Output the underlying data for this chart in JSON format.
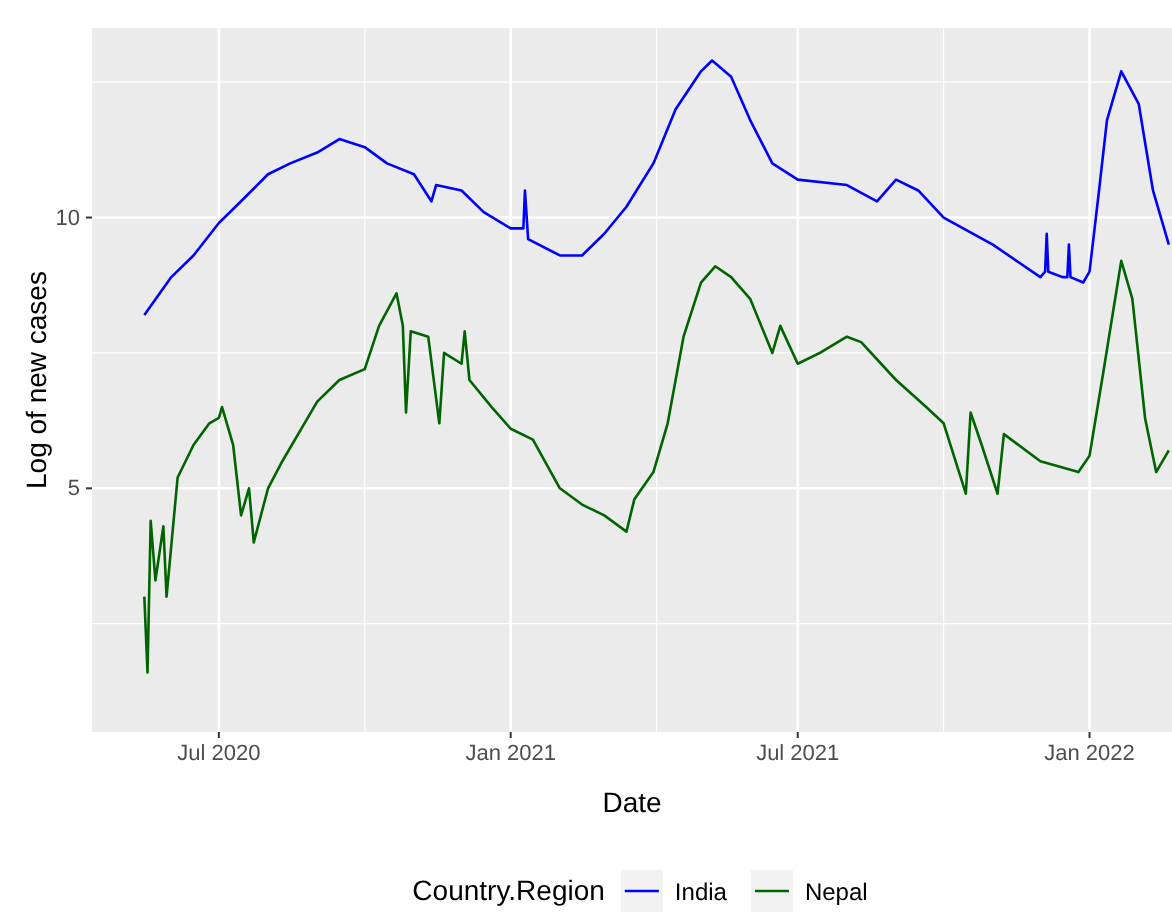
{
  "chart_data": {
    "type": "line",
    "xlabel": "Date",
    "ylabel": "Log of new cases",
    "legend_title": "Country.Region",
    "legend": "bottom",
    "grid": true,
    "xlim": [
      "2020-04-12",
      "2022-02-22"
    ],
    "ylim": [
      0.5,
      13.5
    ],
    "xticks": [
      {
        "value": "2020-07-01",
        "label": "Jul 2020"
      },
      {
        "value": "2021-01-01",
        "label": "Jan 2021"
      },
      {
        "value": "2021-07-01",
        "label": "Jul 2021"
      },
      {
        "value": "2022-01-01",
        "label": "Jan 2022"
      }
    ],
    "yticks": [
      5,
      10
    ],
    "series": [
      {
        "name": "India",
        "color": "#0000ff",
        "x": [
          "2020-05-15",
          "2020-06-01",
          "2020-06-15",
          "2020-07-01",
          "2020-07-15",
          "2020-08-01",
          "2020-08-15",
          "2020-09-01",
          "2020-09-15",
          "2020-10-01",
          "2020-10-15",
          "2020-11-01",
          "2020-11-12",
          "2020-11-15",
          "2020-12-01",
          "2020-12-15",
          "2021-01-01",
          "2021-01-09",
          "2021-01-10",
          "2021-01-12",
          "2021-02-01",
          "2021-02-15",
          "2021-03-01",
          "2021-03-15",
          "2021-04-01",
          "2021-04-15",
          "2021-05-01",
          "2021-05-08",
          "2021-05-20",
          "2021-06-01",
          "2021-06-15",
          "2021-07-01",
          "2021-08-01",
          "2021-08-20",
          "2021-09-01",
          "2021-09-15",
          "2021-10-01",
          "2021-11-01",
          "2021-12-01",
          "2021-12-04",
          "2021-12-05",
          "2021-12-06",
          "2021-12-15",
          "2021-12-18",
          "2021-12-19",
          "2021-12-20",
          "2021-12-28",
          "2022-01-01",
          "2022-01-07",
          "2022-01-12",
          "2022-01-21",
          "2022-02-01",
          "2022-02-10",
          "2022-02-20"
        ],
        "values": [
          8.2,
          8.9,
          9.3,
          9.9,
          10.3,
          10.8,
          11.0,
          11.2,
          11.45,
          11.3,
          11.0,
          10.8,
          10.3,
          10.6,
          10.5,
          10.1,
          9.8,
          9.8,
          10.5,
          9.6,
          9.3,
          9.3,
          9.7,
          10.2,
          11.0,
          12.0,
          12.7,
          12.9,
          12.6,
          11.8,
          11.0,
          10.7,
          10.6,
          10.3,
          10.7,
          10.5,
          10.0,
          9.5,
          8.9,
          9.0,
          9.7,
          9.0,
          8.9,
          8.9,
          9.5,
          8.9,
          8.8,
          9.0,
          10.5,
          11.8,
          12.7,
          12.1,
          10.5,
          9.5
        ]
      },
      {
        "name": "Nepal",
        "color": "#006400",
        "x": [
          "2020-05-15",
          "2020-05-17",
          "2020-05-19",
          "2020-05-22",
          "2020-05-27",
          "2020-05-29",
          "2020-06-05",
          "2020-06-15",
          "2020-06-25",
          "2020-07-01",
          "2020-07-03",
          "2020-07-10",
          "2020-07-15",
          "2020-07-20",
          "2020-07-23",
          "2020-08-01",
          "2020-08-10",
          "2020-08-20",
          "2020-09-01",
          "2020-09-15",
          "2020-10-01",
          "2020-10-10",
          "2020-10-21",
          "2020-10-25",
          "2020-10-27",
          "2020-10-30",
          "2020-11-10",
          "2020-11-17",
          "2020-11-20",
          "2020-12-01",
          "2020-12-03",
          "2020-12-06",
          "2020-12-20",
          "2021-01-01",
          "2021-01-15",
          "2021-02-01",
          "2021-02-15",
          "2021-03-01",
          "2021-03-15",
          "2021-03-20",
          "2021-04-01",
          "2021-04-10",
          "2021-04-20",
          "2021-05-01",
          "2021-05-10",
          "2021-05-20",
          "2021-06-01",
          "2021-06-15",
          "2021-06-20",
          "2021-07-01",
          "2021-07-15",
          "2021-08-01",
          "2021-08-10",
          "2021-09-01",
          "2021-09-20",
          "2021-10-01",
          "2021-10-15",
          "2021-10-18",
          "2021-10-25",
          "2021-11-04",
          "2021-11-08",
          "2021-12-01",
          "2021-12-25",
          "2022-01-01",
          "2022-01-10",
          "2022-01-21",
          "2022-01-28",
          "2022-02-05",
          "2022-02-12",
          "2022-02-20"
        ],
        "values": [
          3.0,
          1.6,
          4.4,
          3.3,
          4.3,
          3.0,
          5.2,
          5.8,
          6.2,
          6.3,
          6.5,
          5.8,
          4.5,
          5.0,
          4.0,
          5.0,
          5.5,
          6.0,
          6.6,
          7.0,
          7.2,
          8.0,
          8.6,
          8.0,
          6.4,
          7.9,
          7.8,
          6.2,
          7.5,
          7.3,
          7.9,
          7.0,
          6.5,
          6.1,
          5.9,
          5.0,
          4.7,
          4.5,
          4.2,
          4.8,
          5.3,
          6.2,
          7.8,
          8.8,
          9.1,
          8.9,
          8.5,
          7.5,
          8.0,
          7.3,
          7.5,
          7.8,
          7.7,
          7.0,
          6.5,
          6.2,
          4.9,
          6.4,
          5.8,
          4.9,
          6.0,
          5.5,
          5.3,
          5.6,
          7.2,
          9.2,
          8.5,
          6.3,
          5.3,
          5.7
        ]
      }
    ]
  }
}
